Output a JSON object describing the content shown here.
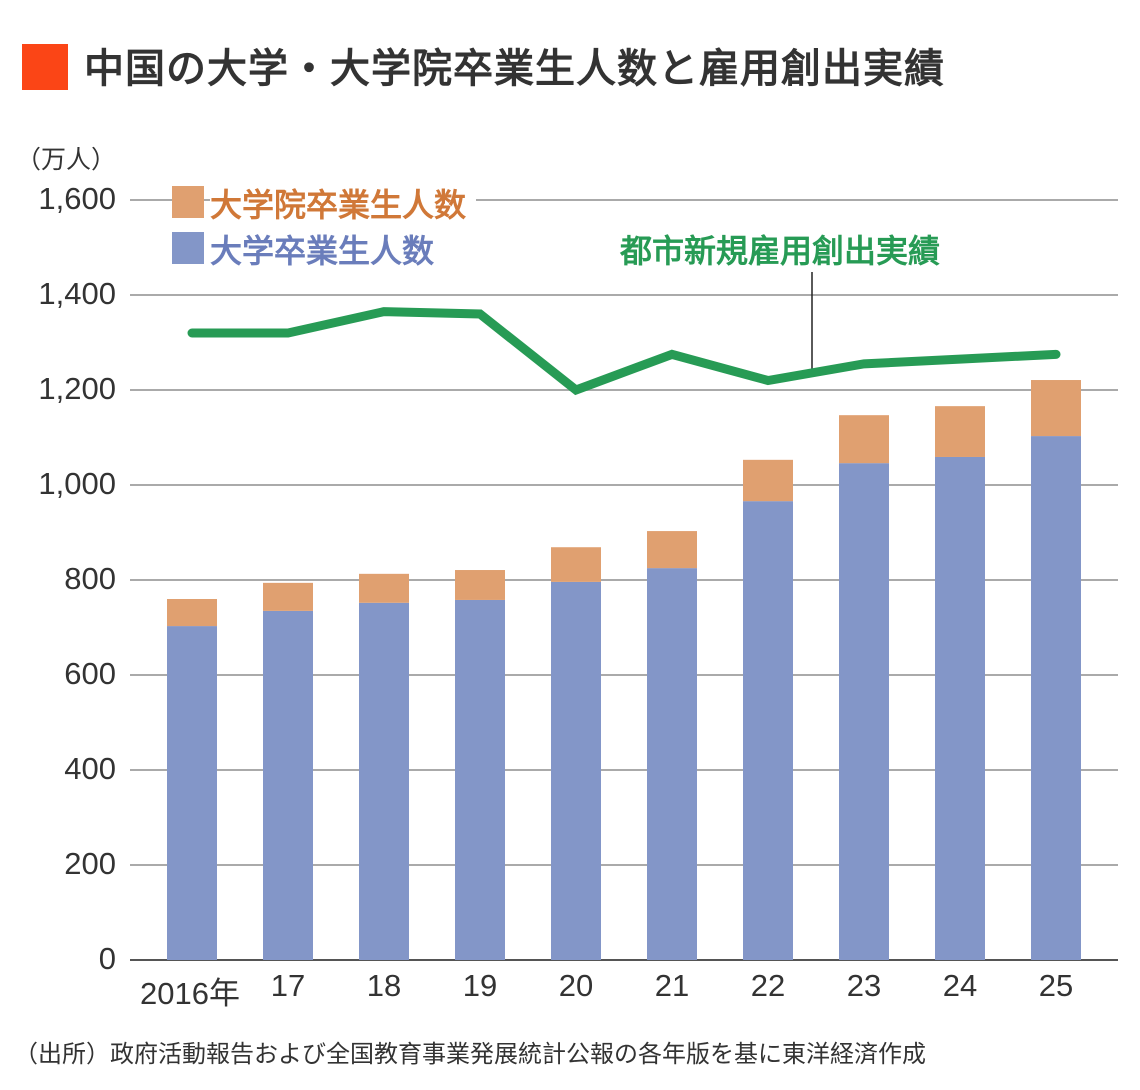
{
  "title": "中国の大学・大学院卒業生人数と雇用創出実績",
  "source": "（出所）政府活動報告および全国教育事業発展統計公報の各年版を基に東洋経済作成",
  "colors": {
    "title_mark": "#fb4516",
    "graduate": "#e0a070",
    "undergrad": "#8396c8",
    "line": "#279b55",
    "grid": "#aaaaaa"
  },
  "chart_data": {
    "type": "bar",
    "stacked": true,
    "unit_label": "（万人）",
    "categories": [
      "2016年",
      "17",
      "18",
      "19",
      "20",
      "21",
      "22",
      "23",
      "24",
      "25"
    ],
    "ylim": [
      0,
      1600
    ],
    "yticks": [
      "0",
      "200",
      "400",
      "600",
      "800",
      "1,000",
      "1,200",
      "1,400",
      "1,600"
    ],
    "ytick_values": [
      0,
      200,
      400,
      600,
      800,
      1000,
      1200,
      1400,
      1600
    ],
    "grid": true,
    "legend_placement": "top-left",
    "series": [
      {
        "name": "大学卒業生人数",
        "type": "bar",
        "values": [
          703,
          735,
          752,
          758,
          796,
          825,
          966,
          1046,
          1059,
          1103
        ]
      },
      {
        "name": "大学院卒業生人数",
        "type": "bar",
        "values": [
          57,
          59,
          61,
          63,
          73,
          78,
          87,
          101,
          107,
          118
        ]
      },
      {
        "name": "都市新規雇用創出実績",
        "type": "line",
        "values": [
          1320,
          1320,
          1365,
          1360,
          1200,
          1275,
          1220,
          1255,
          1265,
          1275
        ]
      }
    ]
  }
}
